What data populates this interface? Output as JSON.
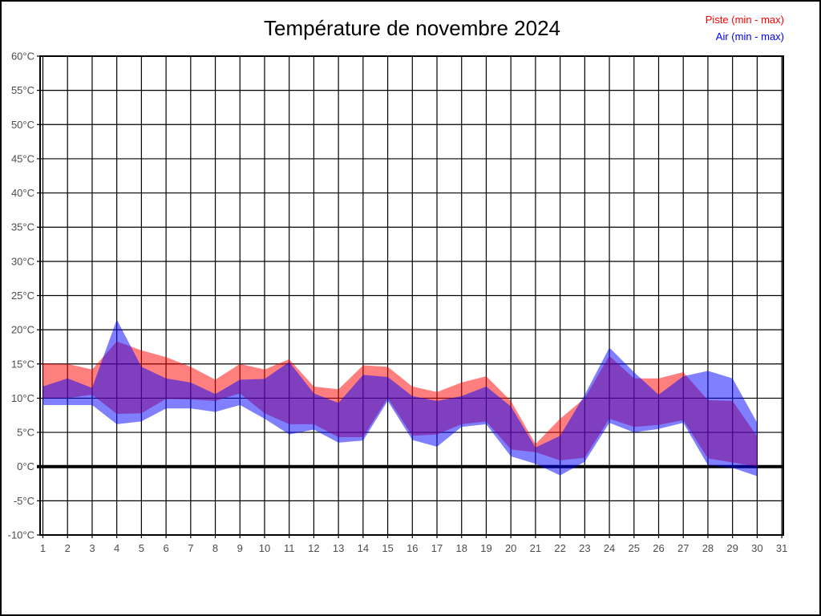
{
  "title": "Température de novembre 2024",
  "legend": [
    {
      "label": "Piste (min - max)",
      "color": "#ff0000"
    },
    {
      "label": "Air (min - max)",
      "color": "#0000ff"
    }
  ],
  "chart_data": {
    "type": "area",
    "subtype": "min-max bands, semi-transparent overlap",
    "x_unit": "day of month",
    "x_ticks": [
      "1",
      "2",
      "3",
      "4",
      "5",
      "6",
      "7",
      "8",
      "9",
      "10",
      "11",
      "12",
      "13",
      "14",
      "15",
      "16",
      "17",
      "18",
      "19",
      "20",
      "21",
      "22",
      "23",
      "24",
      "25",
      "26",
      "27",
      "28",
      "29",
      "30",
      "31"
    ],
    "y_ticks": [
      "60°C",
      "55°C",
      "50°C",
      "45°C",
      "40°C",
      "35°C",
      "30°C",
      "25°C",
      "20°C",
      "15°C",
      "10°C",
      "5°C",
      "0°C",
      "-5°C",
      "-10°C"
    ],
    "ylim": [
      -10,
      60
    ],
    "y_step": 5,
    "grid": true,
    "zero_line_bold": true,
    "days": [
      1,
      2,
      3,
      4,
      5,
      6,
      7,
      8,
      9,
      10,
      11,
      12,
      13,
      14,
      15,
      16,
      17,
      18,
      19,
      20,
      21,
      22,
      23,
      24,
      25,
      26,
      27,
      28,
      29,
      30
    ],
    "series": [
      {
        "name": "Piste (min - max)",
        "color": "#ff0000",
        "fill_opacity": 0.5,
        "min": [
          10.0,
          10.0,
          10.5,
          7.7,
          7.8,
          9.9,
          9.8,
          9.6,
          10.7,
          7.8,
          6.2,
          6.2,
          4.3,
          4.3,
          10.0,
          4.5,
          4.7,
          6.2,
          6.6,
          2.5,
          2.1,
          0.9,
          1.3,
          7.0,
          5.8,
          6.1,
          6.8,
          1.2,
          0.6,
          0.0
        ],
        "max": [
          15.1,
          15.0,
          14.2,
          18.3,
          17.0,
          16.0,
          14.6,
          12.7,
          15.0,
          14.2,
          15.7,
          11.7,
          11.3,
          14.8,
          14.6,
          11.7,
          10.9,
          12.3,
          13.2,
          9.6,
          3.3,
          7.0,
          10.0,
          16.2,
          12.9,
          12.9,
          13.8,
          9.7,
          9.6,
          4.4
        ]
      },
      {
        "name": "Air (min - max)",
        "color": "#0000ff",
        "fill_opacity": 0.5,
        "min": [
          9.0,
          9.0,
          9.0,
          6.2,
          6.6,
          8.5,
          8.5,
          8.0,
          9.0,
          7.0,
          4.7,
          5.4,
          3.5,
          3.8,
          9.6,
          3.9,
          2.9,
          5.8,
          6.2,
          1.5,
          0.4,
          -1.3,
          0.7,
          6.4,
          5.0,
          5.5,
          6.4,
          0.2,
          -0.2,
          -1.4
        ],
        "max": [
          11.7,
          12.9,
          11.5,
          21.5,
          14.6,
          12.9,
          12.3,
          10.6,
          12.7,
          12.8,
          15.3,
          10.7,
          9.3,
          13.4,
          13.1,
          10.3,
          9.6,
          10.3,
          11.7,
          8.8,
          2.8,
          4.5,
          10.5,
          17.4,
          13.8,
          10.5,
          13.2,
          14.0,
          12.9,
          6.4
        ]
      }
    ],
    "title": "Température de novembre 2024",
    "legend_position": "top-right"
  },
  "style": {
    "grid_color": "#000000",
    "axis_label_color": "#4d4d4d",
    "title_color": "#000000",
    "background": "#ffffff"
  }
}
